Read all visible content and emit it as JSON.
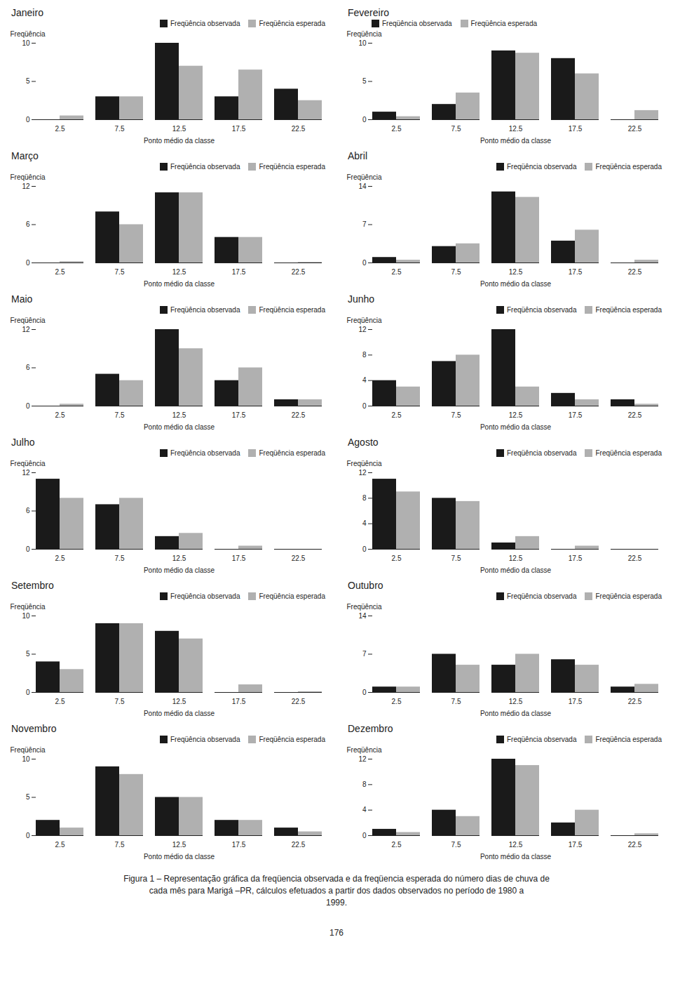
{
  "chart_data": [
    {
      "type": "bar",
      "title": "Janeiro",
      "categories": [
        "2.5",
        "7.5",
        "12.5",
        "17.5",
        "22.5"
      ],
      "xlabel": "Ponto médio da classe",
      "ylabel": "Freqüência",
      "series": [
        {
          "name": "Freqüência observada",
          "color": "#1a1a1a",
          "values": [
            0,
            3,
            10,
            3,
            4
          ]
        },
        {
          "name": "Freqüência esperada",
          "color": "#b0b0b0",
          "values": [
            0.5,
            3,
            7,
            6.5,
            2.5
          ]
        }
      ],
      "ylim": [
        0,
        10
      ],
      "yticks": [
        0,
        5,
        10
      ],
      "grid": false,
      "legend": "upper right"
    },
    {
      "type": "bar",
      "title": "Fevereiro",
      "categories": [
        "2.5",
        "7.5",
        "12.5",
        "17.5",
        "22.5"
      ],
      "xlabel": "Ponto médio da classe",
      "ylabel": "Freqüência",
      "series": [
        {
          "name": "Freqüência observada",
          "color": "#1a1a1a",
          "values": [
            1,
            2,
            9,
            8,
            0
          ]
        },
        {
          "name": "Freqüência esperada",
          "color": "#b0b0b0",
          "values": [
            0.4,
            3.5,
            8.7,
            6,
            1.2
          ]
        }
      ],
      "ylim": [
        0,
        10
      ],
      "yticks": [
        0,
        5,
        10
      ],
      "grid": false,
      "legend": "upper left"
    },
    {
      "type": "bar",
      "title": "Março",
      "categories": [
        "2.5",
        "7.5",
        "12.5",
        "17.5",
        "22.5"
      ],
      "xlabel": "Ponto médio da classe",
      "ylabel": "Freqüência",
      "series": [
        {
          "name": "Freqüência observada",
          "color": "#1a1a1a",
          "values": [
            0,
            8,
            11,
            4,
            0
          ]
        },
        {
          "name": "Freqüência esperada",
          "color": "#b0b0b0",
          "values": [
            0.2,
            6,
            11,
            4,
            0.1
          ]
        }
      ],
      "ylim": [
        0,
        12
      ],
      "yticks": [
        0,
        6,
        12
      ],
      "grid": false,
      "legend": "upper right"
    },
    {
      "type": "bar",
      "title": "Abril",
      "categories": [
        "2.5",
        "7.5",
        "12.5",
        "17.5",
        "22.5"
      ],
      "xlabel": "Ponto médio da classe",
      "ylabel": "Freqüência",
      "series": [
        {
          "name": "Freqüência observada",
          "color": "#1a1a1a",
          "values": [
            1,
            3,
            13,
            4,
            0
          ]
        },
        {
          "name": "Freqüência esperada",
          "color": "#b0b0b0",
          "values": [
            0.5,
            3.5,
            12,
            6,
            0.5
          ]
        }
      ],
      "ylim": [
        0,
        14
      ],
      "yticks": [
        0,
        7,
        14
      ],
      "grid": false,
      "legend": "upper right"
    },
    {
      "type": "bar",
      "title": "Maio",
      "categories": [
        "2.5",
        "7.5",
        "12.5",
        "17.5",
        "22.5"
      ],
      "xlabel": "Ponto médio da classe",
      "ylabel": "Freqüência",
      "series": [
        {
          "name": "Freqüência observada",
          "color": "#1a1a1a",
          "values": [
            0,
            5,
            12,
            4,
            1
          ]
        },
        {
          "name": "Freqüência esperada",
          "color": "#b0b0b0",
          "values": [
            0.3,
            4,
            9,
            6,
            1
          ]
        }
      ],
      "ylim": [
        0,
        12
      ],
      "yticks": [
        0,
        6,
        12
      ],
      "grid": false,
      "legend": "upper right"
    },
    {
      "type": "bar",
      "title": "Junho",
      "categories": [
        "2.5",
        "7.5",
        "12.5",
        "17.5",
        "22.5"
      ],
      "xlabel": "Ponto médio da classe",
      "ylabel": "Freqüência",
      "series": [
        {
          "name": "Freqüência observada",
          "color": "#1a1a1a",
          "values": [
            4,
            7,
            12,
            2,
            1
          ]
        },
        {
          "name": "Freqüência esperada",
          "color": "#b0b0b0",
          "values": [
            3,
            8,
            3,
            1,
            0.3
          ]
        }
      ],
      "ylim": [
        0,
        12
      ],
      "yticks": [
        0,
        4,
        8,
        12
      ],
      "grid": false,
      "legend": "upper right"
    },
    {
      "type": "bar",
      "title": "Julho",
      "categories": [
        "2.5",
        "7.5",
        "12.5",
        "17.5",
        "22.5"
      ],
      "xlabel": "Ponto médio da classe",
      "ylabel": "Freqüência",
      "series": [
        {
          "name": "Freqüência observada",
          "color": "#1a1a1a",
          "values": [
            11,
            7,
            2,
            0,
            0
          ]
        },
        {
          "name": "Freqüência esperada",
          "color": "#b0b0b0",
          "values": [
            8,
            8,
            2.5,
            0.5,
            0
          ]
        }
      ],
      "ylim": [
        0,
        12
      ],
      "yticks": [
        0,
        6,
        12
      ],
      "grid": false,
      "legend": "upper right"
    },
    {
      "type": "bar",
      "title": "Agosto",
      "categories": [
        "2.5",
        "7.5",
        "12.5",
        "17.5",
        "22.5"
      ],
      "xlabel": "Ponto médio da classe",
      "ylabel": "Freqüência",
      "series": [
        {
          "name": "Freqüência observada",
          "color": "#1a1a1a",
          "values": [
            11,
            8,
            1,
            0,
            0
          ]
        },
        {
          "name": "Freqüência esperada",
          "color": "#b0b0b0",
          "values": [
            9,
            7.5,
            2,
            0.5,
            0
          ]
        }
      ],
      "ylim": [
        0,
        12
      ],
      "yticks": [
        0,
        4,
        8,
        12
      ],
      "grid": false,
      "legend": "upper right"
    },
    {
      "type": "bar",
      "title": "Setembro",
      "categories": [
        "2.5",
        "7.5",
        "12.5",
        "17.5",
        "22.5"
      ],
      "xlabel": "Ponto médio da classe",
      "ylabel": "Freqüência",
      "series": [
        {
          "name": "Freqüência observada",
          "color": "#1a1a1a",
          "values": [
            4,
            9,
            8,
            0,
            0
          ]
        },
        {
          "name": "Freqüência esperada",
          "color": "#b0b0b0",
          "values": [
            3,
            9,
            7,
            1,
            0.1
          ]
        }
      ],
      "ylim": [
        0,
        10
      ],
      "yticks": [
        0,
        5,
        10
      ],
      "grid": false,
      "legend": "upper right"
    },
    {
      "type": "bar",
      "title": "Outubro",
      "categories": [
        "2.5",
        "7.5",
        "12.5",
        "17.5",
        "22.5"
      ],
      "xlabel": "Ponto médio da classe",
      "ylabel": "Freqüência",
      "series": [
        {
          "name": "Freqüência observada",
          "color": "#1a1a1a",
          "values": [
            1,
            7,
            5,
            6,
            1
          ]
        },
        {
          "name": "Freqüência esperada",
          "color": "#b0b0b0",
          "values": [
            1,
            5,
            7,
            5,
            1.5
          ]
        }
      ],
      "ylim": [
        0,
        14
      ],
      "yticks": [
        0,
        7,
        14
      ],
      "grid": false,
      "legend": "upper right"
    },
    {
      "type": "bar",
      "title": "Novembro",
      "categories": [
        "2.5",
        "7.5",
        "12.5",
        "17.5",
        "22.5"
      ],
      "xlabel": "Ponto médio da classe",
      "ylabel": "Freqüência",
      "series": [
        {
          "name": "Freqüência observada",
          "color": "#1a1a1a",
          "values": [
            2,
            9,
            5,
            2,
            1
          ]
        },
        {
          "name": "Freqüência esperada",
          "color": "#b0b0b0",
          "values": [
            1,
            8,
            5,
            2,
            0.5
          ]
        }
      ],
      "ylim": [
        0,
        10
      ],
      "yticks": [
        0,
        5,
        10
      ],
      "grid": false,
      "legend": "upper right"
    },
    {
      "type": "bar",
      "title": "Dezembro",
      "categories": [
        "2.5",
        "7.5",
        "12.5",
        "17.5",
        "22.5"
      ],
      "xlabel": "Ponto médio da classe",
      "ylabel": "Freqüência",
      "series": [
        {
          "name": "Freqüência observada",
          "color": "#1a1a1a",
          "values": [
            1,
            4,
            12,
            2,
            0
          ]
        },
        {
          "name": "Freqüência esperada",
          "color": "#b0b0b0",
          "values": [
            0.5,
            3,
            11,
            4,
            0.3
          ]
        }
      ],
      "ylim": [
        0,
        12
      ],
      "yticks": [
        0,
        4,
        8,
        12
      ],
      "grid": false,
      "legend": "upper right"
    }
  ],
  "caption": "Figura 1 – Representação gráfica da freqüencia observada e da freqüencia esperada do número dias de chuva de\ncada mês para Marigá –PR, cálculos efetuados a partir dos dados observados no período de 1980 a\n1999.",
  "page_number": "176"
}
